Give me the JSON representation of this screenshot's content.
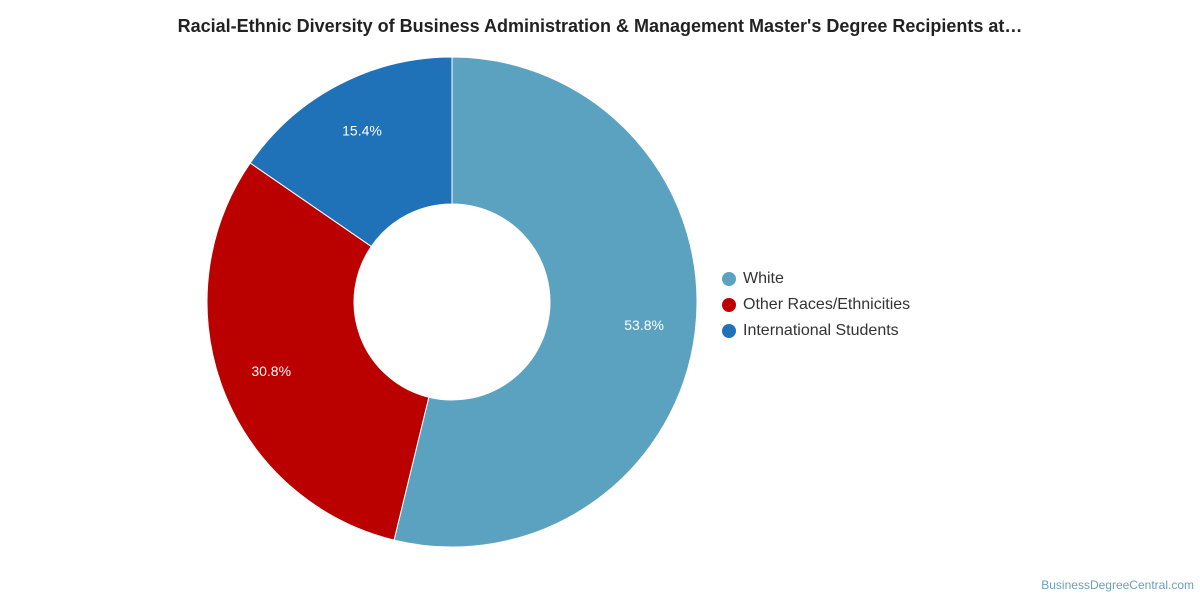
{
  "title": "Racial-Ethnic Diversity of Business Administration & Management Master's Degree Recipients at…",
  "credit": "BusinessDegreeCentral.com",
  "chart_data": {
    "type": "pie",
    "donut": true,
    "title": "Racial-Ethnic Diversity of Business Administration & Management Master's Degree Recipients at…",
    "legend_position": "right",
    "slices": [
      {
        "name": "White",
        "value": 53.8,
        "label": "53.8%",
        "color": "#5ba2c0"
      },
      {
        "name": "Other Races/Ethnicities",
        "value": 30.8,
        "label": "30.8%",
        "color": "#bb0000"
      },
      {
        "name": "International Students",
        "value": 15.4,
        "label": "15.4%",
        "color": "#1f72b8"
      }
    ]
  }
}
